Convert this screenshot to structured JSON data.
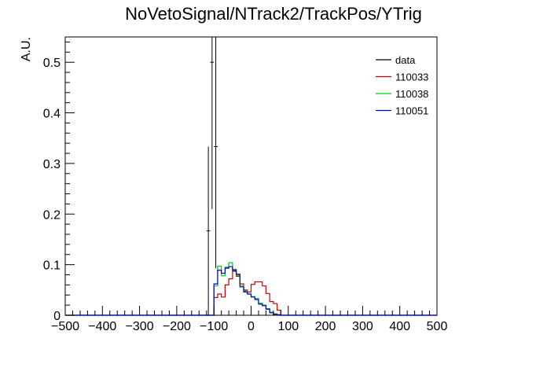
{
  "chart_data": {
    "type": "histogram",
    "title": "NoVetoSignal/NTrack2/TrackPos/YTrig",
    "xlabel": "",
    "ylabel": "A.U.",
    "xlim": [
      -500,
      500
    ],
    "ylim": [
      0,
      0.55
    ],
    "x_major_ticks": [
      -500,
      -400,
      -300,
      -200,
      -100,
      0,
      100,
      200,
      300,
      400,
      500
    ],
    "x_tick_labels": [
      "−500",
      "−400",
      "−300",
      "−200",
      "−100",
      "0",
      "100",
      "200",
      "300",
      "400",
      "500"
    ],
    "y_major_ticks": [
      0,
      0.1,
      0.2,
      0.3,
      0.4,
      0.5
    ],
    "y_tick_labels": [
      "0",
      "0.1",
      "0.2",
      "0.3",
      "0.4",
      "0.5"
    ],
    "bin_width": 10,
    "grid": false,
    "legend_position": "top-right",
    "series": [
      {
        "name": "data",
        "color": "#000000",
        "style": "points-with-errors",
        "points": [
          {
            "x": -115,
            "y": 0.1667,
            "err": 0.1667
          },
          {
            "x": -105,
            "y": 0.5,
            "err": 0.29
          },
          {
            "x": -95,
            "y": 0.3333,
            "err": 0.24
          }
        ]
      },
      {
        "name": "110033",
        "color": "#cc0000",
        "style": "step",
        "bin_start": -110,
        "values": [
          0.0,
          0.035,
          0.042,
          0.036,
          0.06,
          0.072,
          0.087,
          0.077,
          0.062,
          0.05,
          0.046,
          0.061,
          0.066,
          0.066,
          0.058,
          0.043,
          0.027,
          0.023,
          0.01
        ]
      },
      {
        "name": "110038",
        "color": "#00cc00",
        "style": "step",
        "bin_start": -110,
        "values": [
          0.0,
          0.058,
          0.097,
          0.078,
          0.095,
          0.104,
          0.091,
          0.079,
          0.058,
          0.048,
          0.042,
          0.037,
          0.033,
          0.024,
          0.02,
          0.013,
          0.006,
          0.003,
          0.001
        ]
      },
      {
        "name": "110051",
        "color": "#0000cc",
        "style": "step",
        "bin_start": -110,
        "values": [
          0.0,
          0.062,
          0.089,
          0.083,
          0.093,
          0.096,
          0.089,
          0.081,
          0.056,
          0.046,
          0.042,
          0.036,
          0.031,
          0.022,
          0.019,
          0.012,
          0.005,
          0.002,
          0.001
        ]
      }
    ]
  }
}
